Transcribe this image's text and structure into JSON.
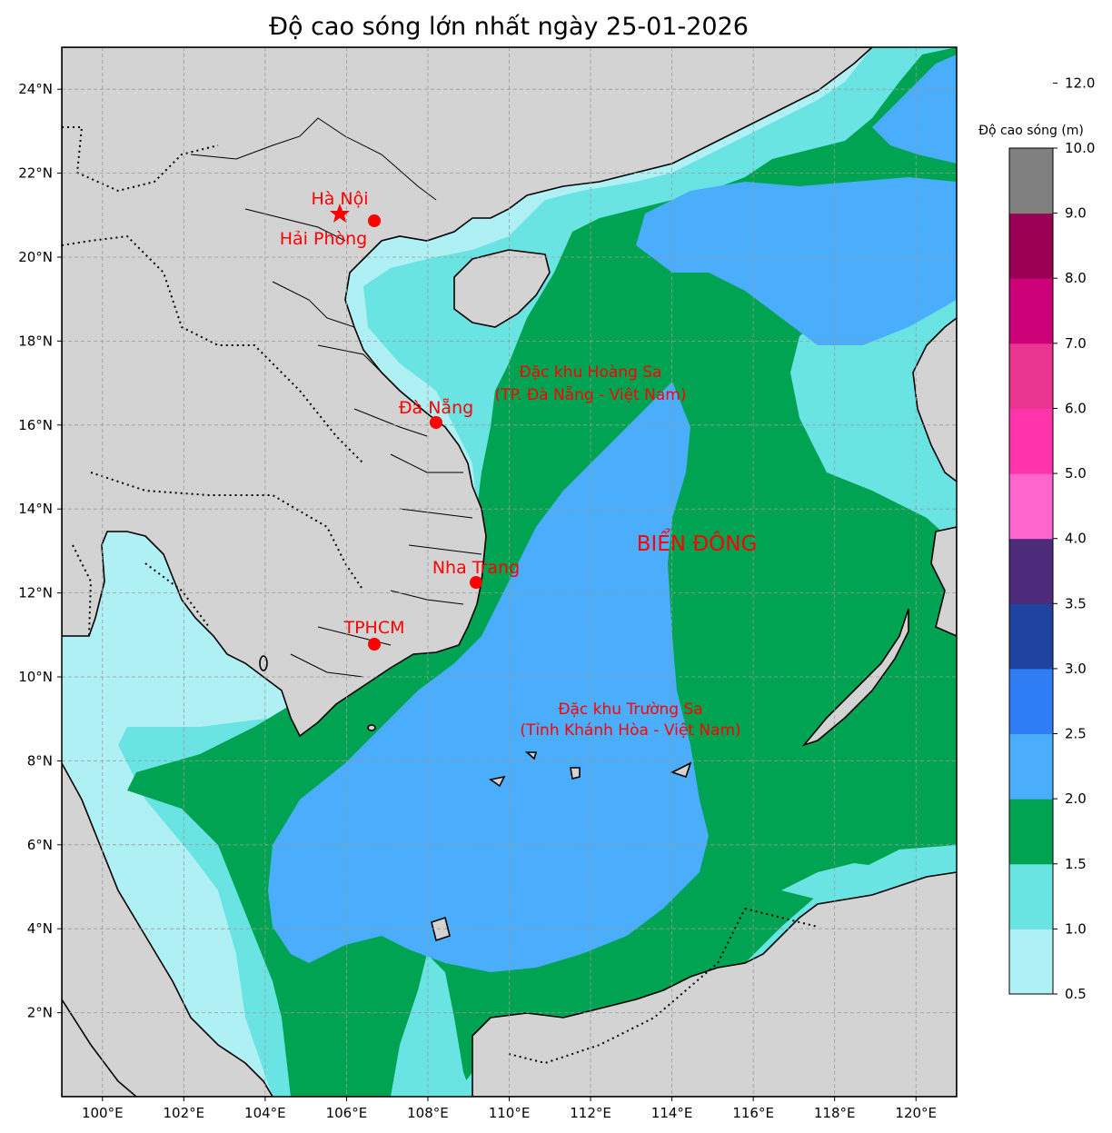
{
  "title": "Độ cao sóng lớn nhất ngày 25-01-2026",
  "lon_ticks": [
    "100°E",
    "102°E",
    "104°E",
    "106°E",
    "108°E",
    "110°E",
    "112°E",
    "114°E",
    "116°E",
    "118°E",
    "120°E"
  ],
  "lat_ticks": [
    "2°N",
    "4°N",
    "6°N",
    "8°N",
    "10°N",
    "12°N",
    "14°N",
    "16°N",
    "18°N",
    "20°N",
    "22°N",
    "24°N"
  ],
  "colorbar": {
    "label": "Độ cao sóng (m)",
    "ticks": [
      "0.5",
      "1.0",
      "1.5",
      "2.0",
      "2.5",
      "3.0",
      "3.5",
      "4.0",
      "5.0",
      "6.0",
      "7.0",
      "8.0",
      "9.0",
      "10.0",
      "12.0"
    ],
    "colors": [
      "#aff0f5",
      "#6ae3e3",
      "#00a352",
      "#4aaefc",
      "#2e7df5",
      "#2043a0",
      "#4b2b7a",
      "#ff66cc",
      "#ff33aa",
      "#e8358f",
      "#cc0077",
      "#990055",
      "#808080"
    ]
  },
  "colors": {
    "land": "#d3d3d3",
    "border": "#000000",
    "grid": "#9a9a9a",
    "marker": "#ff0000"
  },
  "labels": {
    "hanoi": "Hà Nội",
    "haiphong": "Hải Phòng",
    "danang": "Đà Nẵng",
    "nhatrang": "Nha Trang",
    "tphcm": "TPHCM",
    "hoangsa_line1": "Đặc khu Hoàng Sa",
    "hoangsa_line2": "(TP. Đà Nẵng - Việt Nam)",
    "truongsa_line1": "Đặc khu Trường Sa",
    "truongsa_line2": "(Tỉnh Khánh Hòa - Việt Nam)",
    "sea": "BIỂN ĐÔNG"
  }
}
